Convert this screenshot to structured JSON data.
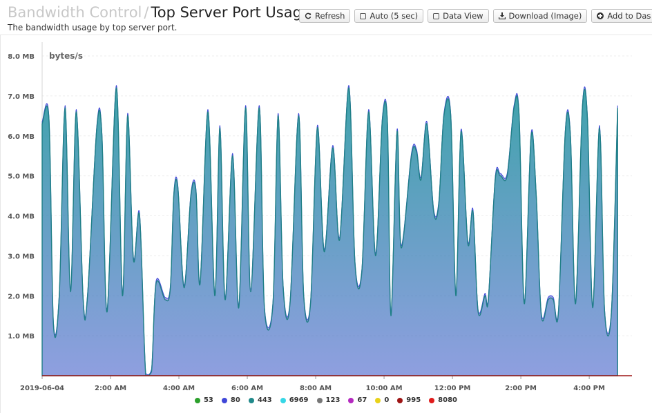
{
  "header": {
    "breadcrumb": "Bandwidth Control",
    "separator": "/",
    "title": "Top Server Port Usage",
    "subtitle": "The bandwidth usage by top server port."
  },
  "toolbar": {
    "refresh_label": "Refresh",
    "auto_label": "Auto (5 sec)",
    "data_view_label": "Data View",
    "download_label": "Download (Image)",
    "add_label": "Add to Das"
  },
  "chart_data": {
    "type": "area",
    "ylabel": "bytes/s",
    "y_ticks": [
      "1.0 MB",
      "2.0 MB",
      "3.0 MB",
      "4.0 MB",
      "5.0 MB",
      "6.0 MB",
      "7.0 MB",
      "8.0 MB"
    ],
    "ylim": [
      0,
      8
    ],
    "xlim": [
      0,
      17.25
    ],
    "x_ticks": [
      {
        "label": "2019-06-04",
        "hours": 0
      },
      {
        "label": "2:00 AM",
        "hours": 2
      },
      {
        "label": "4:00 AM",
        "hours": 4
      },
      {
        "label": "6:00 AM",
        "hours": 6
      },
      {
        "label": "8:00 AM",
        "hours": 8
      },
      {
        "label": "10:00 AM",
        "hours": 10
      },
      {
        "label": "12:00 PM",
        "hours": 12
      },
      {
        "label": "2:00 PM",
        "hours": 14
      },
      {
        "label": "4:00 PM",
        "hours": 16
      }
    ],
    "legend": [
      {
        "name": "53",
        "color": "#2ca02c"
      },
      {
        "name": "80",
        "color": "#3f47d8"
      },
      {
        "name": "443",
        "color": "#20898a"
      },
      {
        "name": "6969",
        "color": "#36d7e6"
      },
      {
        "name": "123",
        "color": "#777777"
      },
      {
        "name": "67",
        "color": "#b52ac0"
      },
      {
        "name": "0",
        "color": "#e8d21a"
      },
      {
        "name": "995",
        "color": "#9e1515"
      },
      {
        "name": "8080",
        "color": "#e01b1b"
      }
    ],
    "series_443": [
      [
        0.0,
        6.3
      ],
      [
        0.2,
        6.4
      ],
      [
        0.33,
        1.3
      ],
      [
        0.5,
        2.0
      ],
      [
        0.67,
        6.7
      ],
      [
        0.83,
        2.1
      ],
      [
        1.0,
        6.6
      ],
      [
        1.2,
        1.9
      ],
      [
        1.33,
        2.0
      ],
      [
        1.6,
        6.2
      ],
      [
        1.75,
        6.0
      ],
      [
        1.9,
        1.6
      ],
      [
        2.17,
        7.2
      ],
      [
        2.35,
        2.0
      ],
      [
        2.5,
        6.5
      ],
      [
        2.67,
        2.9
      ],
      [
        2.85,
        4.0
      ],
      [
        3.03,
        0.0
      ],
      [
        3.2,
        0.1
      ],
      [
        3.33,
        2.3
      ],
      [
        3.6,
        1.9
      ],
      [
        3.75,
        2.2
      ],
      [
        3.85,
        4.5
      ],
      [
        3.97,
        4.7
      ],
      [
        4.15,
        2.2
      ],
      [
        4.35,
        4.5
      ],
      [
        4.5,
        4.6
      ],
      [
        4.62,
        2.3
      ],
      [
        4.85,
        6.6
      ],
      [
        5.05,
        2.0
      ],
      [
        5.2,
        6.2
      ],
      [
        5.35,
        1.9
      ],
      [
        5.57,
        5.5
      ],
      [
        5.75,
        1.7
      ],
      [
        5.95,
        6.7
      ],
      [
        6.1,
        2.1
      ],
      [
        6.35,
        6.7
      ],
      [
        6.5,
        1.7
      ],
      [
        6.75,
        1.8
      ],
      [
        6.9,
        6.5
      ],
      [
        7.05,
        2.2
      ],
      [
        7.25,
        1.8
      ],
      [
        7.5,
        6.5
      ],
      [
        7.65,
        2.0
      ],
      [
        7.85,
        1.8
      ],
      [
        8.05,
        6.2
      ],
      [
        8.25,
        3.1
      ],
      [
        8.5,
        5.7
      ],
      [
        8.7,
        3.4
      ],
      [
        8.97,
        7.2
      ],
      [
        9.15,
        2.8
      ],
      [
        9.35,
        2.6
      ],
      [
        9.55,
        6.6
      ],
      [
        9.75,
        3.0
      ],
      [
        9.95,
        6.4
      ],
      [
        10.1,
        6.3
      ],
      [
        10.2,
        1.5
      ],
      [
        10.38,
        6.1
      ],
      [
        10.5,
        3.2
      ],
      [
        10.8,
        5.5
      ],
      [
        10.95,
        5.6
      ],
      [
        11.08,
        4.9
      ],
      [
        11.25,
        6.3
      ],
      [
        11.45,
        4.1
      ],
      [
        11.6,
        4.3
      ],
      [
        11.75,
        6.5
      ],
      [
        11.95,
        6.5
      ],
      [
        12.1,
        2.0
      ],
      [
        12.25,
        6.1
      ],
      [
        12.45,
        3.3
      ],
      [
        12.6,
        4.1
      ],
      [
        12.75,
        1.6
      ],
      [
        12.95,
        2.0
      ],
      [
        13.05,
        1.9
      ],
      [
        13.25,
        4.9
      ],
      [
        13.4,
        5.0
      ],
      [
        13.6,
        5.0
      ],
      [
        13.8,
        6.7
      ],
      [
        13.95,
        6.5
      ],
      [
        14.1,
        1.8
      ],
      [
        14.3,
        6.0
      ],
      [
        14.45,
        4.5
      ],
      [
        14.6,
        1.5
      ],
      [
        14.8,
        1.9
      ],
      [
        14.95,
        1.9
      ],
      [
        15.1,
        1.6
      ],
      [
        15.3,
        6.1
      ],
      [
        15.45,
        6.0
      ],
      [
        15.6,
        1.8
      ],
      [
        15.8,
        6.7
      ],
      [
        15.95,
        6.4
      ],
      [
        16.1,
        1.7
      ],
      [
        16.3,
        6.2
      ],
      [
        16.45,
        1.6
      ],
      [
        16.65,
        1.6
      ],
      [
        16.83,
        6.7
      ]
    ]
  }
}
